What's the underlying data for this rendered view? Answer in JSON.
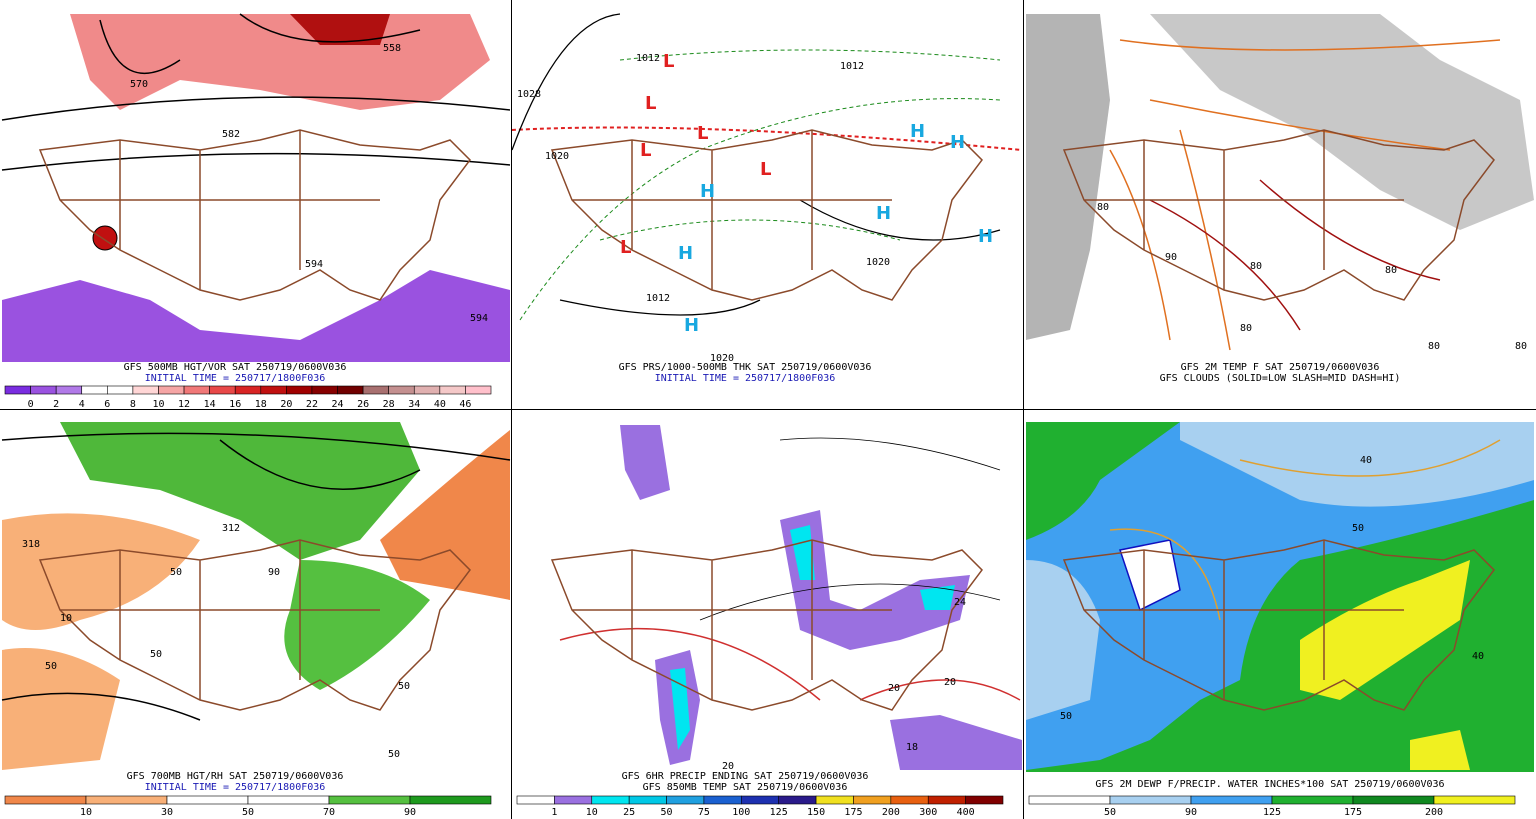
{
  "panels": [
    {
      "captions": [
        "GFS 500MB HGT/VOR SAT 250719/0600V036",
        "INITIAL TIME = 250717/1800F036"
      ],
      "caption_colors": [
        "#000000",
        "#1a1ab4"
      ],
      "colorbar": {
        "colors": [
          "#7a2de0",
          "#9a52e0",
          "#b17ae8",
          "#ffffff",
          "#ffffff",
          "#ffd6d6",
          "#f5a5a5",
          "#f07878",
          "#e84848",
          "#d82424",
          "#c01010",
          "#a00000",
          "#860000",
          "#700000",
          "#a87070",
          "#c49090",
          "#e0b0b0",
          "#f4c8c8",
          "#ffc0cb"
        ],
        "labels": [
          "0",
          "2",
          "4",
          "6",
          "8",
          "10",
          "12",
          "14",
          "16",
          "18",
          "20",
          "22",
          "24",
          "26",
          "28",
          "34",
          "40",
          "46"
        ]
      },
      "map_labels": [
        "570",
        "558",
        "582",
        "594",
        "594"
      ]
    },
    {
      "captions": [
        "GFS PRS/1000-500MB THK SAT 250719/0600V036",
        "INITIAL TIME = 250717/1800F036"
      ],
      "caption_colors": [
        "#000000",
        "#1a1ab4"
      ],
      "map_labels": [
        "L",
        "L",
        "L",
        "L",
        "L",
        "L",
        "H",
        "H",
        "H",
        "H",
        "H",
        "H",
        "H",
        "1028",
        "1020",
        "1012",
        "1012",
        "1020",
        "1020",
        "1012"
      ]
    },
    {
      "captions": [
        "GFS 2M TEMP F SAT 250719/0600V036",
        "GFS CLOUDS (SOLID=LOW SLASH=MID DASH=HI)"
      ],
      "caption_colors": [
        "#000000",
        "#000000"
      ],
      "map_labels": [
        "80",
        "80",
        "80",
        "80",
        "80",
        "90",
        "80"
      ]
    },
    {
      "captions": [
        "GFS 700MB HGT/RH SAT 250719/0600V036",
        "INITIAL TIME = 250717/1800F036"
      ],
      "caption_colors": [
        "#000000",
        "#1a1ab4"
      ],
      "colorbar": {
        "colors": [
          "#f0874a",
          "#f8b078",
          "#ffffff",
          "#ffffff",
          "#55c040",
          "#1e9a1e"
        ],
        "labels": [
          "10",
          "30",
          "50",
          "70",
          "90"
        ]
      },
      "map_labels": [
        "318",
        "312",
        "50",
        "50",
        "10",
        "50",
        "90",
        "50",
        "50"
      ]
    },
    {
      "captions": [
        "GFS 6HR PRECIP ENDING SAT 250719/0600V036",
        "GFS 850MB TEMP SAT 250719/0600V036"
      ],
      "caption_colors": [
        "#000000",
        "#000000"
      ],
      "colorbar": {
        "colors": [
          "#ffffff",
          "#9a70e0",
          "#00e6f0",
          "#00c8e6",
          "#20a0e0",
          "#1a60d0",
          "#1d30b0",
          "#2a1a8a",
          "#f0e020",
          "#f0a020",
          "#e86010",
          "#c02000",
          "#800000"
        ],
        "labels": [
          "1",
          "10",
          "25",
          "50",
          "75",
          "100",
          "125",
          "150",
          "175",
          "200",
          "300",
          "400"
        ]
      },
      "map_labels": [
        "24",
        "18",
        "20",
        "20",
        "20"
      ]
    },
    {
      "captions": [
        "GFS 2M DEWP F/PRECIP. WATER INCHES*100 SAT 250719/0600V036"
      ],
      "caption_colors": [
        "#000000"
      ],
      "colorbar": {
        "colors": [
          "#ffffff",
          "#a8d0f0",
          "#40a0f0",
          "#20b030",
          "#108820",
          "#f0f020"
        ],
        "labels": [
          "50",
          "90",
          "125",
          "175",
          "200"
        ]
      },
      "map_labels": [
        "40",
        "50",
        "50",
        "40"
      ]
    }
  ]
}
